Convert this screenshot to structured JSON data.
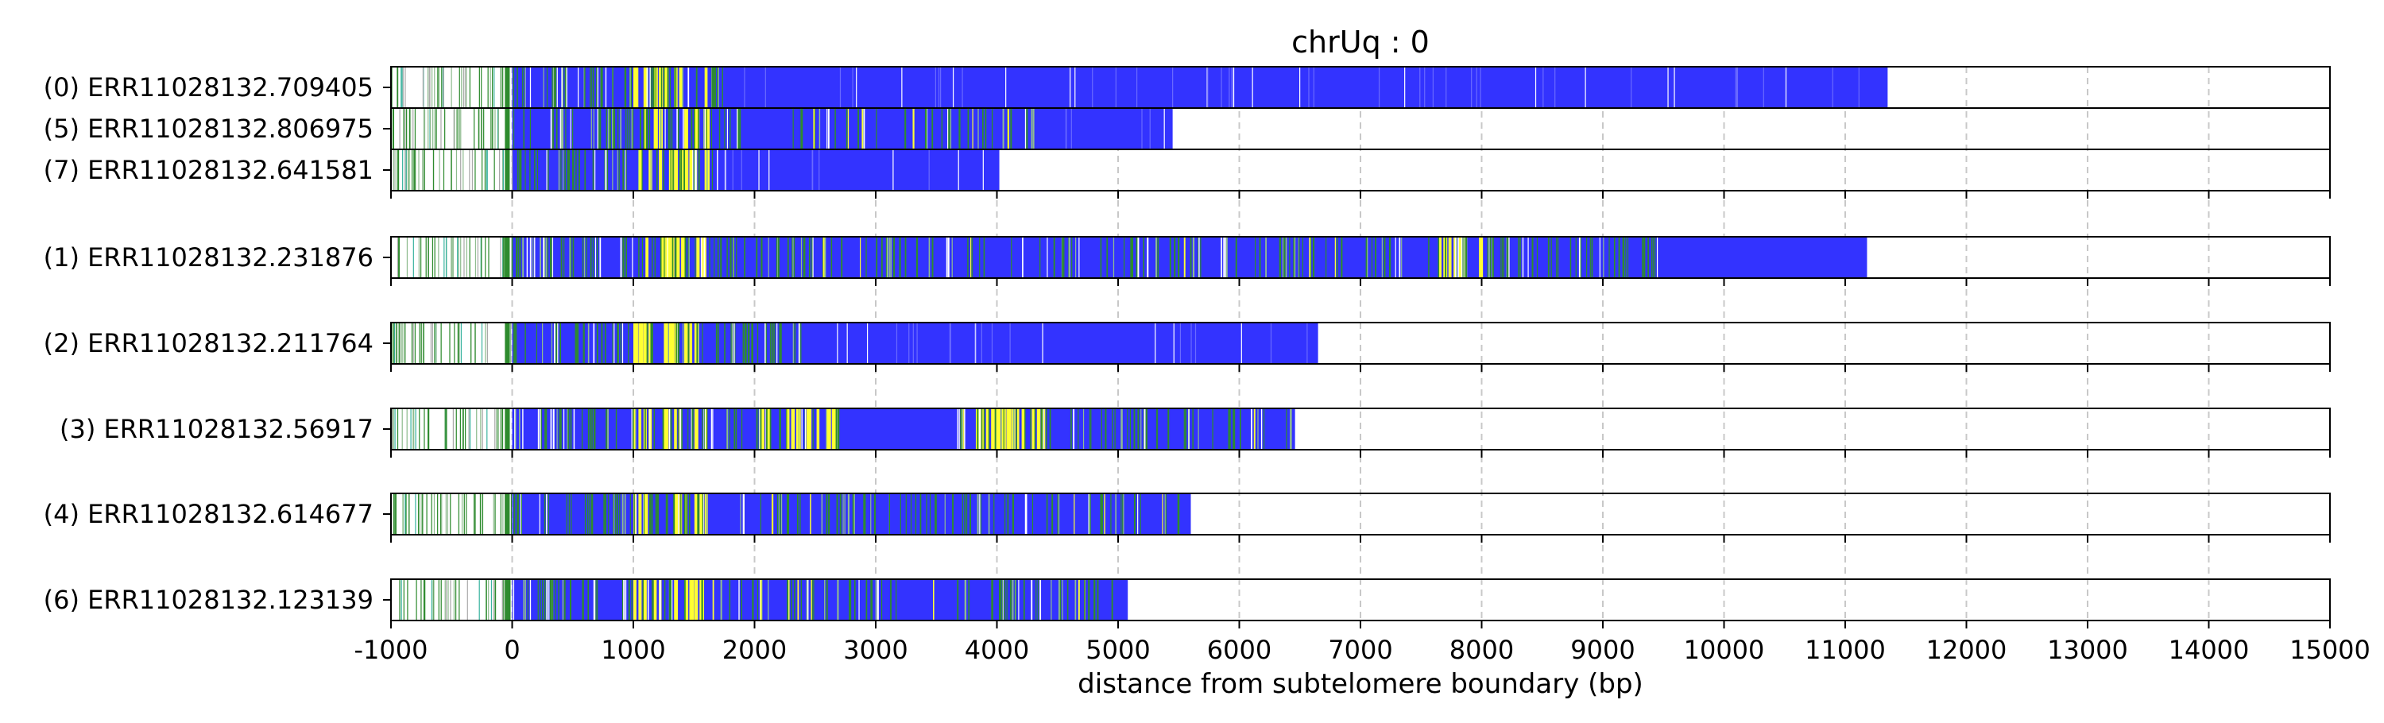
{
  "chart_data": {
    "type": "bar",
    "title": "chrUq : 0",
    "xlabel": "distance from subtelomere boundary (bp)",
    "ylabel": "",
    "xlim": [
      -1000,
      15000
    ],
    "xticks": [
      -1000,
      0,
      1000,
      2000,
      3000,
      4000,
      5000,
      6000,
      7000,
      8000,
      9000,
      10000,
      11000,
      12000,
      13000,
      14000,
      15000
    ],
    "grid": "vertical dashed at x ticks",
    "colors": {
      "main": "#3333ff",
      "green": "#2e8b2e",
      "light_green": "#8fbc8f",
      "yellow": "#ffff33",
      "white": "#ffffff",
      "teal": "#3cb4a0",
      "gray": "#aaaaaa",
      "grid": "#c8c8c8"
    },
    "groups": [
      {
        "reads": [
          {
            "label": "(0) ERR11028132.709405",
            "end": 11350,
            "segments": [
              {
                "type": "sparse",
                "start": -1000,
                "end": 0
              },
              {
                "type": "yellow",
                "start": 1000,
                "end": 1620
              },
              {
                "type": "dense_green",
                "start": 0,
                "end": 1900
              },
              {
                "type": "scatter_white",
                "start": 1900,
                "end": 11300
              }
            ]
          },
          {
            "label": "(5) ERR11028132.806975",
            "end": 5450,
            "segments": [
              {
                "type": "sparse",
                "start": -1000,
                "end": 0
              },
              {
                "type": "yellow",
                "start": 1000,
                "end": 1620
              },
              {
                "type": "dense_green",
                "start": 0,
                "end": 1900
              },
              {
                "type": "mixed_green",
                "start": 2300,
                "end": 4300
              },
              {
                "type": "scatter_white",
                "start": 4300,
                "end": 5400
              }
            ]
          },
          {
            "label": "(7) ERR11028132.641581",
            "end": 4020,
            "segments": [
              {
                "type": "sparse",
                "start": -1000,
                "end": 0
              },
              {
                "type": "yellow",
                "start": 1000,
                "end": 1620
              },
              {
                "type": "dense_green",
                "start": 0,
                "end": 1700
              },
              {
                "type": "scatter_white",
                "start": 1700,
                "end": 4000
              }
            ]
          }
        ]
      },
      {
        "reads": [
          {
            "label": "(1) ERR11028132.231876",
            "end": 11180,
            "segments": [
              {
                "type": "sparse",
                "start": -1000,
                "end": 0
              },
              {
                "type": "yellow",
                "start": 1100,
                "end": 1600
              },
              {
                "type": "dense_green",
                "start": 0,
                "end": 1600
              },
              {
                "type": "mixed_green",
                "start": 1600,
                "end": 7400
              },
              {
                "type": "yellow",
                "start": 7600,
                "end": 8000
              },
              {
                "type": "dense_green",
                "start": 7550,
                "end": 9450
              }
            ]
          }
        ]
      },
      {
        "reads": [
          {
            "label": "(2) ERR11028132.211764",
            "end": 6650,
            "segments": [
              {
                "type": "sparse",
                "start": -1000,
                "end": 0
              },
              {
                "type": "yellow",
                "start": 1000,
                "end": 1600
              },
              {
                "type": "dense_green",
                "start": 0,
                "end": 2400
              },
              {
                "type": "scatter_white",
                "start": 2400,
                "end": 6600
              }
            ]
          }
        ]
      },
      {
        "reads": [
          {
            "label": "(3) ERR11028132.56917",
            "end": 6460,
            "segments": [
              {
                "type": "sparse",
                "start": -1000,
                "end": 0
              },
              {
                "type": "yellow",
                "start": 1000,
                "end": 1620
              },
              {
                "type": "dense_green",
                "start": 0,
                "end": 1900
              },
              {
                "type": "yellow",
                "start": 2050,
                "end": 2650
              },
              {
                "type": "dense_green",
                "start": 2000,
                "end": 2700
              },
              {
                "type": "yellow",
                "start": 3700,
                "end": 4400
              },
              {
                "type": "dense_green",
                "start": 3650,
                "end": 4450
              },
              {
                "type": "mixed_green",
                "start": 4450,
                "end": 6450
              }
            ]
          }
        ]
      },
      {
        "reads": [
          {
            "label": "(4) ERR11028132.614677",
            "end": 5600,
            "segments": [
              {
                "type": "sparse",
                "start": -1000,
                "end": 0
              },
              {
                "type": "yellow",
                "start": 1000,
                "end": 1620
              },
              {
                "type": "dense_green",
                "start": 0,
                "end": 1700
              },
              {
                "type": "mixed_green",
                "start": 1700,
                "end": 5550
              }
            ]
          }
        ]
      },
      {
        "reads": [
          {
            "label": "(6) ERR11028132.123139",
            "end": 5080,
            "segments": [
              {
                "type": "sparse",
                "start": -1000,
                "end": 0
              },
              {
                "type": "yellow",
                "start": 1000,
                "end": 1600
              },
              {
                "type": "dense_green",
                "start": 0,
                "end": 1600
              },
              {
                "type": "mixed_green",
                "start": 1600,
                "end": 3500
              },
              {
                "type": "dense_green",
                "start": 3650,
                "end": 4350
              },
              {
                "type": "mixed_green",
                "start": 4350,
                "end": 5050
              }
            ]
          }
        ]
      }
    ]
  }
}
